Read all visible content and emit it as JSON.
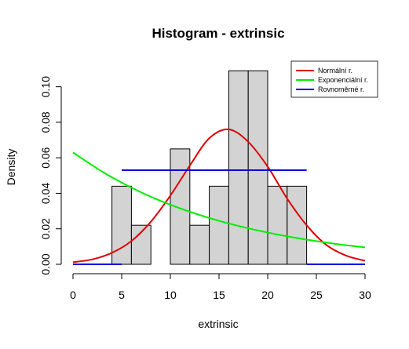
{
  "chart_data": {
    "type": "bar",
    "title": "Histogram - extrinsic",
    "xlabel": "extrinsic",
    "ylabel": "Density",
    "xlim": [
      0,
      30
    ],
    "ylim": [
      0,
      0.11
    ],
    "x_ticks": [
      0,
      5,
      10,
      15,
      20,
      25,
      30
    ],
    "y_ticks": [
      0.0,
      0.02,
      0.04,
      0.06,
      0.08,
      0.1
    ],
    "x_tick_labels": [
      "0",
      "5",
      "10",
      "15",
      "20",
      "25",
      "30"
    ],
    "y_tick_labels": [
      "0.00",
      "0.02",
      "0.04",
      "0.06",
      "0.08",
      "0.10"
    ],
    "bin_edges": [
      4,
      6,
      8,
      10,
      12,
      14,
      16,
      18,
      20,
      22,
      24
    ],
    "densities": [
      0.044,
      0.022,
      0.0,
      0.065,
      0.022,
      0.044,
      0.109,
      0.109,
      0.044,
      0.044
    ],
    "bar_color": "#d3d3d3",
    "legend_position": "top-right",
    "series": [
      {
        "name": "Normální r.",
        "type": "line",
        "color": "#e00000",
        "x": [
          0,
          2,
          4,
          6,
          8,
          10,
          12,
          14,
          16,
          18,
          20,
          22,
          24,
          26,
          28,
          30
        ],
        "y": [
          0.0012,
          0.0028,
          0.0065,
          0.0131,
          0.024,
          0.0387,
          0.0556,
          0.071,
          0.076,
          0.069,
          0.055,
          0.037,
          0.022,
          0.011,
          0.005,
          0.002
        ]
      },
      {
        "name": "Exponenciální r.",
        "type": "line",
        "color": "#00ee00",
        "x": [
          0,
          3,
          6,
          9,
          12,
          15,
          18,
          21,
          24,
          27,
          30
        ],
        "y": [
          0.063,
          0.0522,
          0.0432,
          0.0357,
          0.0296,
          0.0245,
          0.0203,
          0.0168,
          0.0139,
          0.0115,
          0.0095
        ]
      },
      {
        "name": "Rovnoměrné r.",
        "type": "line",
        "color": "#0000dd",
        "segments": [
          {
            "x": [
              0,
              5
            ],
            "y": [
              0,
              0
            ]
          },
          {
            "x": [
              5,
              24
            ],
            "y": [
              0.053,
              0.053
            ]
          },
          {
            "x": [
              24,
              30
            ],
            "y": [
              0,
              0
            ]
          }
        ]
      }
    ]
  }
}
